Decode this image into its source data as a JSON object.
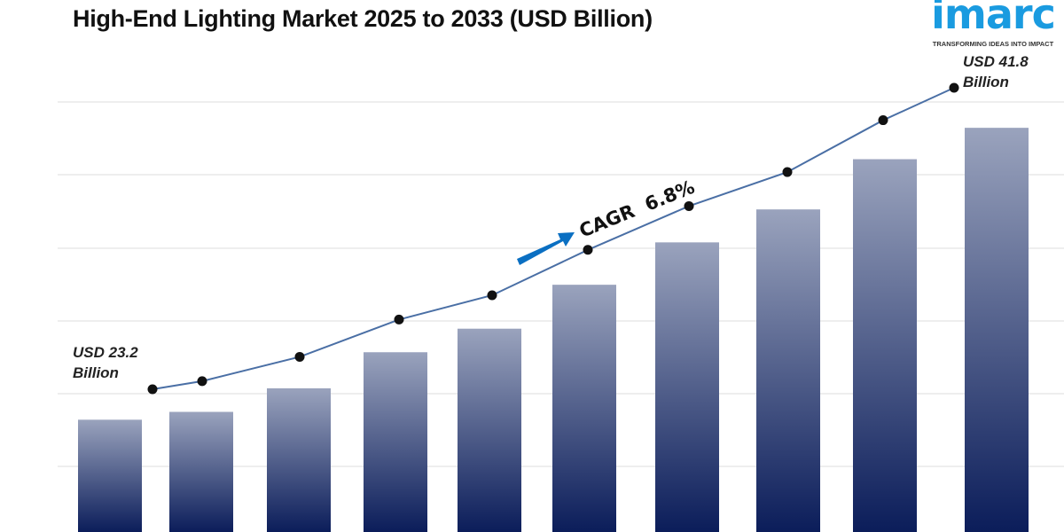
{
  "logo": {
    "word": "imarc",
    "tagline": "TRANSFORMING IDEAS INTO IMPACT",
    "color": "#1a9be0"
  },
  "chart_data": {
    "type": "bar",
    "title": "High-End Lighting Market 2025 to 2033 (USD Billion)",
    "xlabel": "",
    "ylabel": "",
    "grid": true,
    "values": [
      23.2,
      23.7,
      25.2,
      27.5,
      29.0,
      31.8,
      34.5,
      36.6,
      39.8,
      41.8
    ],
    "overlay_line": true,
    "annotations": {
      "start_label": [
        "USD 23.2",
        "Billion"
      ],
      "end_label": [
        "USD 41.8",
        "Billion"
      ],
      "cagr": "CAGR  6.8%"
    },
    "colors": {
      "bar_top": "#9aa3bd",
      "bar_bottom": "#0b1d5a",
      "line": "#4a6fa5",
      "arrow": "#0a6fc2"
    }
  }
}
